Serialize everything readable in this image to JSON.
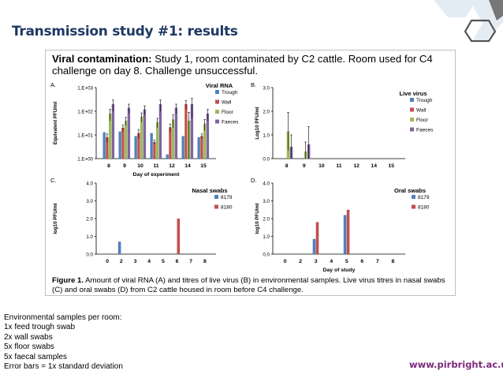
{
  "slide": {
    "title": "Transmission study #1: results",
    "url": "www.pirbright.ac.uk"
  },
  "figure": {
    "header_bold": "Viral contamination:",
    "header_rest": " Study 1, room contaminated by C2 cattle. Room used for C4 challenge on day 8. Challenge unsuccessful.",
    "caption_bold": "Figure 1.",
    "caption_rest": " Amount of viral RNA (A) and titres of live virus (B) in environmental samples. Live virus titres in nasal swabs (C) and oral swabs (D) from C2 cattle housed in room before C4 challenge."
  },
  "notes": [
    "Environmental samples per room:",
    "1x feed trough swab",
    "2x wall swabs",
    "5x floor swabs",
    "5x faecal samples",
    "Error bars = 1x standard deviation"
  ],
  "colors": {
    "trough": "#4f81bd",
    "wall": "#c0504d",
    "floor": "#9bbb59",
    "faeces": "#8064a2",
    "title": "#1f3864",
    "url": "#7b2a7b"
  },
  "chart_data": [
    {
      "id": "A",
      "panel_label": "A.",
      "type": "bar",
      "title": "Viral RNA",
      "xlabel": "Day of experiment",
      "ylabel": "Equivalent PFU/ml",
      "yscale": "log",
      "ylim": [
        1,
        1000
      ],
      "yticks": [
        1,
        10,
        100,
        1000
      ],
      "ytick_labels": [
        "1.E+00",
        "1.E+01",
        "1.E+02",
        "1.E+03"
      ],
      "categories": [
        "8",
        "9",
        "10",
        "11",
        "12",
        "14",
        "15"
      ],
      "series": [
        {
          "name": "Trough",
          "color": "#4f81bd",
          "values": [
            13,
            14,
            9,
            12,
            1.5,
            9,
            8
          ],
          "errors": [
            0,
            0,
            0,
            0,
            0,
            0,
            0
          ]
        },
        {
          "name": "Wall",
          "color": "#c0504d",
          "values": [
            8,
            20,
            12,
            5,
            21,
            200,
            9
          ],
          "errors": [
            3,
            6,
            5,
            1,
            8,
            80,
            2
          ]
        },
        {
          "name": "Floor",
          "color": "#9bbb59",
          "values": [
            80,
            40,
            60,
            35,
            45,
            40,
            30
          ],
          "errors": [
            40,
            15,
            25,
            15,
            25,
            50,
            15
          ]
        },
        {
          "name": "Faeces",
          "color": "#8064a2",
          "values": [
            200,
            140,
            120,
            200,
            140,
            200,
            80
          ],
          "errors": [
            100,
            60,
            50,
            100,
            60,
            150,
            40
          ]
        }
      ]
    },
    {
      "id": "B",
      "panel_label": "B.",
      "type": "bar",
      "title": "Live virus",
      "xlabel": "",
      "ylabel": "Log10 PFU/ml",
      "ylim": [
        0,
        3
      ],
      "yticks": [
        0,
        1,
        2,
        3
      ],
      "ytick_labels": [
        "0.0",
        "1.0",
        "2.0",
        "3.0"
      ],
      "categories": [
        "8",
        "9",
        "10",
        "11",
        "12",
        "14",
        "15"
      ],
      "series": [
        {
          "name": "Trough",
          "color": "#4f81bd",
          "values": [
            0,
            0,
            0,
            0,
            0,
            0,
            0
          ],
          "errors": [
            0,
            0,
            0,
            0,
            0,
            0,
            0
          ]
        },
        {
          "name": "Wall",
          "color": "#c0504d",
          "values": [
            0,
            0,
            0,
            0,
            0,
            0,
            0
          ],
          "errors": [
            0,
            0,
            0,
            0,
            0,
            0,
            0
          ]
        },
        {
          "name": "Floor",
          "color": "#9bbb59",
          "values": [
            1.15,
            0.3,
            0,
            0,
            0,
            0,
            0
          ],
          "errors": [
            0.8,
            0.4,
            0,
            0,
            0,
            0,
            0
          ]
        },
        {
          "name": "Faeces",
          "color": "#8064a2",
          "values": [
            0.5,
            0.6,
            0,
            0,
            0,
            0,
            0
          ],
          "errors": [
            0.5,
            0.75,
            0,
            0,
            0,
            0,
            0
          ]
        }
      ]
    },
    {
      "id": "C",
      "panel_label": "C.",
      "type": "bar",
      "title": "Nasal swabs",
      "xlabel": "",
      "ylabel": "log10 PFU/ml",
      "ylim": [
        0,
        4
      ],
      "yticks": [
        0,
        1,
        2,
        3,
        4
      ],
      "ytick_labels": [
        "0.0",
        "1.0",
        "2.0",
        "3.0",
        "4.0"
      ],
      "categories": [
        "0",
        "2",
        "3",
        "4",
        "5",
        "6",
        "7",
        "8"
      ],
      "series": [
        {
          "name": "8179",
          "color": "#4f81bd",
          "values": [
            0,
            0.7,
            0,
            0,
            0,
            0,
            0,
            0
          ],
          "errors": [
            0,
            0,
            0,
            0,
            0,
            0,
            0,
            0
          ]
        },
        {
          "name": "8180",
          "color": "#c0504d",
          "values": [
            0,
            0,
            0,
            0,
            0,
            2.0,
            0,
            0
          ],
          "errors": [
            0,
            0,
            0,
            0,
            0,
            0,
            0,
            0
          ]
        }
      ]
    },
    {
      "id": "D",
      "panel_label": "D.",
      "type": "bar",
      "title": "Oral swabs",
      "xlabel": "Day of study",
      "ylabel": "log10 PFU/ml",
      "ylim": [
        0,
        4
      ],
      "yticks": [
        0,
        1,
        2,
        3,
        4
      ],
      "ytick_labels": [
        "0.0",
        "1.0",
        "2.0",
        "3.0",
        "4.0"
      ],
      "categories": [
        "0",
        "2",
        "3",
        "4",
        "5",
        "6",
        "7",
        "8"
      ],
      "series": [
        {
          "name": "8179",
          "color": "#4f81bd",
          "values": [
            0,
            0,
            0.85,
            0,
            2.2,
            0,
            0,
            0
          ],
          "errors": [
            0,
            0,
            0,
            0,
            0,
            0,
            0,
            0
          ]
        },
        {
          "name": "8180",
          "color": "#c0504d",
          "values": [
            0,
            0,
            1.8,
            0,
            2.5,
            0,
            0,
            0
          ],
          "errors": [
            0,
            0,
            0,
            0,
            0,
            0,
            0,
            0
          ]
        }
      ]
    }
  ]
}
